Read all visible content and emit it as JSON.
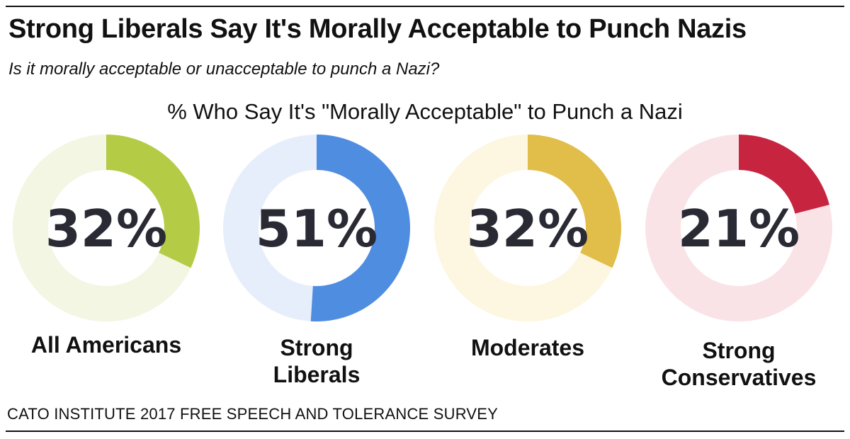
{
  "header": {
    "title": "Strong Liberals Say It's Morally Acceptable to Punch Nazis",
    "question": "Is it morally acceptable or unacceptable to punch a Nazi?"
  },
  "footer": {
    "source": "CATO INSTITUTE 2017 FREE SPEECH AND TOLERANCE SURVEY"
  },
  "colors": {
    "All Americans": {
      "fill": "#b3cb45",
      "track": "#f2f6e2"
    },
    "Strong Liberals": {
      "fill": "#4f8de0",
      "track": "#e7eefb"
    },
    "Moderates": {
      "fill": "#e1bd4a",
      "track": "#fdf6e0"
    },
    "Strong Conservatives": {
      "fill": "#c72440",
      "track": "#fae3e6"
    }
  },
  "chart_data": {
    "type": "pie",
    "title": "% Who Say It's \"Morally Acceptable\" to Punch a Nazi",
    "categories": [
      "All Americans",
      "Strong Liberals",
      "Moderates",
      "Strong Conservatives"
    ],
    "values": [
      32,
      51,
      32,
      21
    ],
    "value_labels": [
      "32%",
      "51%",
      "32%",
      "21%"
    ],
    "display_labels": [
      "All Americans",
      "Strong\nLiberals",
      "Moderates",
      "Strong\nConservatives"
    ]
  }
}
